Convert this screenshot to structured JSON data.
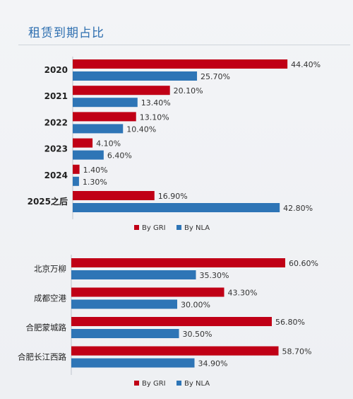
{
  "page": {
    "title": "租赁到期占比"
  },
  "colors": {
    "gri": "#c00016",
    "nla": "#2e75b6"
  },
  "chart_data": [
    {
      "type": "bar",
      "orientation": "horizontal",
      "categories": [
        "2020",
        "2021",
        "2022",
        "2023",
        "2024",
        "2025之后"
      ],
      "series": [
        {
          "name": "By GRI",
          "values": [
            44.4,
            20.1,
            13.1,
            4.1,
            1.4,
            16.9
          ],
          "labels": [
            "44.40%",
            "20.10%",
            "13.10%",
            "4.10%",
            "1.40%",
            "16.90%"
          ]
        },
        {
          "name": "By NLA",
          "values": [
            25.7,
            13.4,
            10.4,
            6.4,
            1.3,
            42.8
          ],
          "labels": [
            "25.70%",
            "13.40%",
            "10.40%",
            "6.40%",
            "1.30%",
            "42.80%"
          ]
        }
      ],
      "legend": "bottom",
      "grid": false
    },
    {
      "type": "bar",
      "orientation": "horizontal",
      "categories": [
        "北京万柳",
        "成都空港",
        "合肥蒙城路",
        "合肥长江西路"
      ],
      "series": [
        {
          "name": "By GRI",
          "values": [
            60.6,
            43.3,
            56.8,
            58.7
          ],
          "labels": [
            "60.60%",
            "43.30%",
            "56.80%",
            "58.70%"
          ]
        },
        {
          "name": "By NLA",
          "values": [
            35.3,
            30.0,
            30.5,
            34.9
          ],
          "labels": [
            "35.30%",
            "30.00%",
            "30.50%",
            "34.90%"
          ]
        }
      ],
      "legend": "bottom",
      "grid": false
    }
  ]
}
